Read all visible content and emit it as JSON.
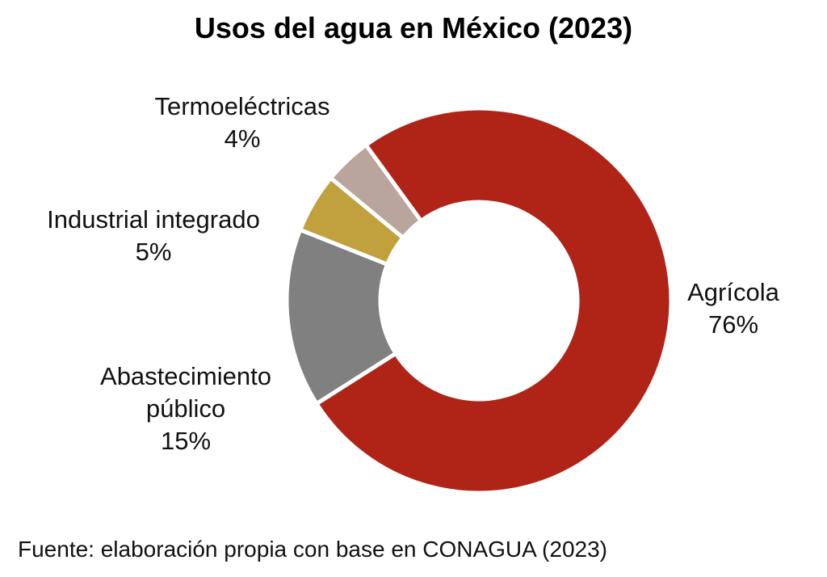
{
  "title": "Usos del agua en México (2023)",
  "source": "Fuente: elaboración propia con base en CONAGUA (2023)",
  "chart_data": {
    "type": "pie",
    "variant": "donut",
    "title": "Usos del agua en México (2023)",
    "start_angle_deg": -36,
    "direction": "clockwise",
    "slices": [
      {
        "label": "Agrícola",
        "value": 76,
        "display": "76%",
        "color": "#b02418"
      },
      {
        "label": "Abastecimiento público",
        "label_lines": [
          "Abastecimiento",
          "público"
        ],
        "value": 15,
        "display": "15%",
        "color": "#808080"
      },
      {
        "label": "Industrial integrado",
        "value": 5,
        "display": "5%",
        "color": "#c0a13e"
      },
      {
        "label": "Termoeléctricas",
        "value": 4,
        "display": "4%",
        "color": "#b9a59b"
      }
    ],
    "labels_outside": true,
    "legend": "none"
  }
}
